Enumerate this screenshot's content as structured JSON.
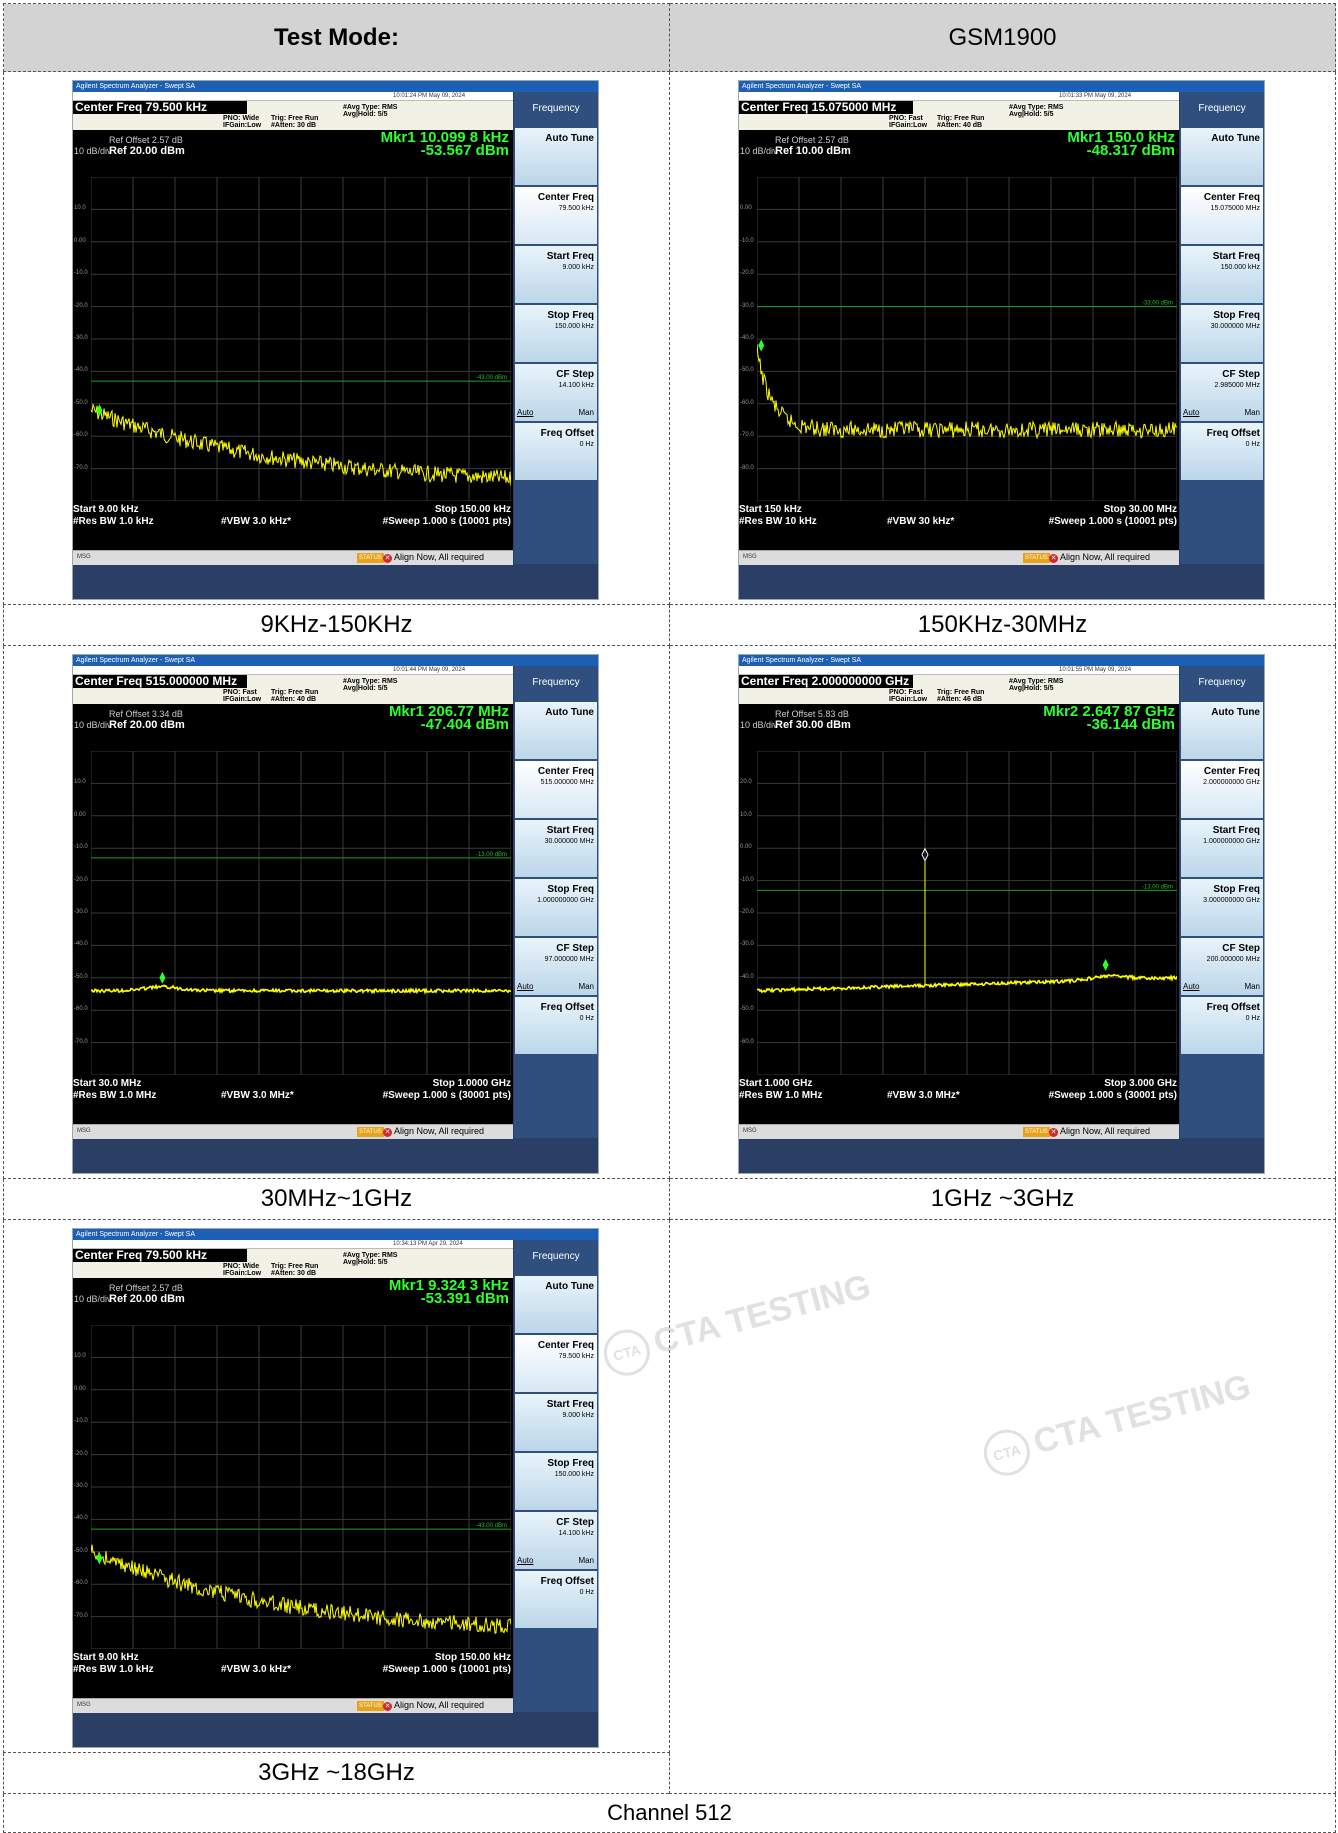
{
  "table": {
    "test_mode_label": "Test Mode:",
    "test_mode_value": "GSM1900",
    "footer": "Channel 512"
  },
  "watermark": "CTA TESTING",
  "plots": [
    {
      "caption": "9KHz-150KHz",
      "window_title": "Agilent Spectrum Analyzer - Swept SA",
      "center_freq": "Center Freq 79.500 kHz",
      "pno": "PNO: Wide",
      "ifgain": "IFGain:Low",
      "trig": "Trig: Free Run",
      "atten": "#Atten: 30 dB",
      "avg_type": "#Avg Type: RMS",
      "avg_hold": "Avg|Hold: 5/5",
      "datetime": "10:01:24 PM May 09, 2024",
      "ref_offset": "Ref Offset 2.57 dB",
      "scale": "10 dB/div",
      "ref": "Ref 20.00 dBm",
      "mkr_freq": "Mkr1 10.099 8 kHz",
      "mkr_amp": "-53.567 dBm",
      "start": "Start 9.00 kHz",
      "stop": "Stop 150.00 kHz",
      "rbw": "#Res BW 1.0 kHz",
      "vbw": "#VBW 3.0 kHz*",
      "sweep": "#Sweep  1.000 s (10001 pts)",
      "ylabels": [
        "10.0",
        "0.00",
        "-10.0",
        "-20.0",
        "-30.0",
        "-40.0",
        "-50.0",
        "-60.0",
        "-70.0"
      ],
      "limit_label": "-43.00 dBm",
      "menu": {
        "title": "Frequency",
        "auto_tune": "Auto Tune",
        "center_freq": {
          "label": "Center Freq",
          "value": "79.500 kHz"
        },
        "start_freq": {
          "label": "Start Freq",
          "value": "9.000 kHz"
        },
        "stop_freq": {
          "label": "Stop Freq",
          "value": "150.000 kHz"
        },
        "cf_step": {
          "label": "CF Step",
          "value": "14.100 kHz",
          "auto": "Auto",
          "man": "Man"
        },
        "freq_offset": {
          "label": "Freq Offset",
          "value": "0 Hz"
        }
      },
      "msg": "MSG",
      "status": "STATUS",
      "align": "Align Now, All required"
    },
    {
      "caption": "150KHz-30MHz",
      "window_title": "Agilent Spectrum Analyzer - Swept SA",
      "center_freq": "Center Freq 15.075000 MHz",
      "pno": "PNO: Fast",
      "ifgain": "IFGain:Low",
      "trig": "Trig: Free Run",
      "atten": "#Atten: 40 dB",
      "avg_type": "#Avg Type: RMS",
      "avg_hold": "Avg|Hold: 5/5",
      "datetime": "10:01:33 PM May 09, 2024",
      "ref_offset": "Ref Offset 2.57 dB",
      "scale": "10 dB/div",
      "ref": "Ref 10.00 dBm",
      "mkr_freq": "Mkr1 150.0 kHz",
      "mkr_amp": "-48.317 dBm",
      "start": "Start 150 kHz",
      "stop": "Stop 30.00 MHz",
      "rbw": "#Res BW 10 kHz",
      "vbw": "#VBW 30 kHz*",
      "sweep": "#Sweep  1.000 s (10001 pts)",
      "ylabels": [
        "0.00",
        "-10.0",
        "-20.0",
        "-30.0",
        "-40.0",
        "-50.0",
        "-60.0",
        "-70.0",
        "-80.0"
      ],
      "limit_label": "-33.00 dBm",
      "menu": {
        "title": "Frequency",
        "auto_tune": "Auto Tune",
        "center_freq": {
          "label": "Center Freq",
          "value": "15.075000 MHz"
        },
        "start_freq": {
          "label": "Start Freq",
          "value": "150.000 kHz"
        },
        "stop_freq": {
          "label": "Stop Freq",
          "value": "30.000000 MHz"
        },
        "cf_step": {
          "label": "CF Step",
          "value": "2.985000 MHz",
          "auto": "Auto",
          "man": "Man"
        },
        "freq_offset": {
          "label": "Freq Offset",
          "value": "0 Hz"
        }
      },
      "msg": "MSG",
      "status": "STATUS",
      "align": "Align Now, All required"
    },
    {
      "caption": "30MHz~1GHz",
      "window_title": "Agilent Spectrum Analyzer - Swept SA",
      "center_freq": "Center Freq 515.000000 MHz",
      "pno": "PNO: Fast",
      "ifgain": "IFGain:Low",
      "trig": "Trig: Free Run",
      "atten": "#Atten: 40 dB",
      "avg_type": "#Avg Type: RMS",
      "avg_hold": "Avg|Hold: 5/5",
      "datetime": "10:01:44 PM May 09, 2024",
      "ref_offset": "Ref Offset 3.34 dB",
      "scale": "10 dB/div",
      "ref": "Ref 20.00 dBm",
      "mkr_freq": "Mkr1 206.77 MHz",
      "mkr_amp": "-47.404 dBm",
      "start": "Start 30.0 MHz",
      "stop": "Stop 1.0000 GHz",
      "rbw": "#Res BW 1.0 MHz",
      "vbw": "#VBW 3.0 MHz*",
      "sweep": "#Sweep  1.000 s (30001 pts)",
      "ylabels": [
        "10.0",
        "0.00",
        "-10.0",
        "-20.0",
        "-30.0",
        "-40.0",
        "-50.0",
        "-60.0",
        "-70.0"
      ],
      "limit_label": "-13.00 dBm",
      "menu": {
        "title": "Frequency",
        "auto_tune": "Auto Tune",
        "center_freq": {
          "label": "Center Freq",
          "value": "515.000000 MHz"
        },
        "start_freq": {
          "label": "Start Freq",
          "value": "30.000000 MHz"
        },
        "stop_freq": {
          "label": "Stop Freq",
          "value": "1.000000000 GHz"
        },
        "cf_step": {
          "label": "CF Step",
          "value": "97.000000 MHz",
          "auto": "Auto",
          "man": "Man"
        },
        "freq_offset": {
          "label": "Freq Offset",
          "value": "0 Hz"
        }
      },
      "msg": "MSG",
      "status": "STATUS",
      "align": "Align Now, All required"
    },
    {
      "caption": "1GHz ~3GHz",
      "window_title": "Agilent Spectrum Analyzer - Swept SA",
      "center_freq": "Center Freq 2.000000000 GHz",
      "pno": "PNO: Fast",
      "ifgain": "IFGain:Low",
      "trig": "Trig: Free Run",
      "atten": "#Atten: 46 dB",
      "avg_type": "#Avg Type: RMS",
      "avg_hold": "Avg|Hold: 5/5",
      "datetime": "10:01:55 PM May 09, 2024",
      "ref_offset": "Ref Offset 5.83 dB",
      "scale": "10 dB/div",
      "ref": "Ref 30.00 dBm",
      "mkr_freq": "Mkr2 2.647 87 GHz",
      "mkr_amp": "-36.144 dBm",
      "start": "Start 1.000 GHz",
      "stop": "Stop 3.000 GHz",
      "rbw": "#Res BW 1.0 MHz",
      "vbw": "#VBW 3.0 MHz*",
      "sweep": "#Sweep  1.000 s (30001 pts)",
      "ylabels": [
        "20.0",
        "10.0",
        "0.00",
        "-10.0",
        "-20.0",
        "-30.0",
        "-40.0",
        "-50.0",
        "-60.0"
      ],
      "limit_label": "-13.00 dBm",
      "menu": {
        "title": "Frequency",
        "auto_tune": "Auto Tune",
        "center_freq": {
          "label": "Center Freq",
          "value": "2.000000000 GHz"
        },
        "start_freq": {
          "label": "Start Freq",
          "value": "1.000000000 GHz"
        },
        "stop_freq": {
          "label": "Stop Freq",
          "value": "3.000000000 GHz"
        },
        "cf_step": {
          "label": "CF Step",
          "value": "200.000000 MHz",
          "auto": "Auto",
          "man": "Man"
        },
        "freq_offset": {
          "label": "Freq Offset",
          "value": "0 Hz"
        }
      },
      "msg": "MSG",
      "status": "STATUS",
      "align": "Align Now, All required"
    },
    {
      "caption": "3GHz ~18GHz",
      "window_title": "Agilent Spectrum Analyzer - Swept SA",
      "center_freq": "Center Freq 79.500 kHz",
      "pno": "PNO: Wide",
      "ifgain": "IFGain:Low",
      "trig": "Trig: Free Run",
      "atten": "#Atten: 30 dB",
      "avg_type": "#Avg Type: RMS",
      "avg_hold": "Avg|Hold: 5/5",
      "datetime": "10:34:13 PM Apr 29, 2024",
      "ref_offset": "Ref Offset 2.57 dB",
      "scale": "10 dB/div",
      "ref": "Ref 20.00 dBm",
      "mkr_freq": "Mkr1 9.324 3 kHz",
      "mkr_amp": "-53.391 dBm",
      "start": "Start 9.00 kHz",
      "stop": "Stop 150.00 kHz",
      "rbw": "#Res BW 1.0 kHz",
      "vbw": "#VBW 3.0 kHz*",
      "sweep": "#Sweep  1.000 s (10001 pts)",
      "ylabels": [
        "10.0",
        "0.00",
        "-10.0",
        "-20.0",
        "-30.0",
        "-40.0",
        "-50.0",
        "-60.0",
        "-70.0"
      ],
      "limit_label": "-43.00 dBm",
      "menu": {
        "title": "Frequency",
        "auto_tune": "Auto Tune",
        "center_freq": {
          "label": "Center Freq",
          "value": "79.500 kHz"
        },
        "start_freq": {
          "label": "Start Freq",
          "value": "9.000 kHz"
        },
        "stop_freq": {
          "label": "Stop Freq",
          "value": "150.000 kHz"
        },
        "cf_step": {
          "label": "CF Step",
          "value": "14.100 kHz",
          "auto": "Auto",
          "man": "Man"
        },
        "freq_offset": {
          "label": "Freq Offset",
          "value": "0 Hz"
        }
      },
      "msg": "MSG",
      "status": "STATUS",
      "align": "Align Now, All required"
    }
  ]
}
